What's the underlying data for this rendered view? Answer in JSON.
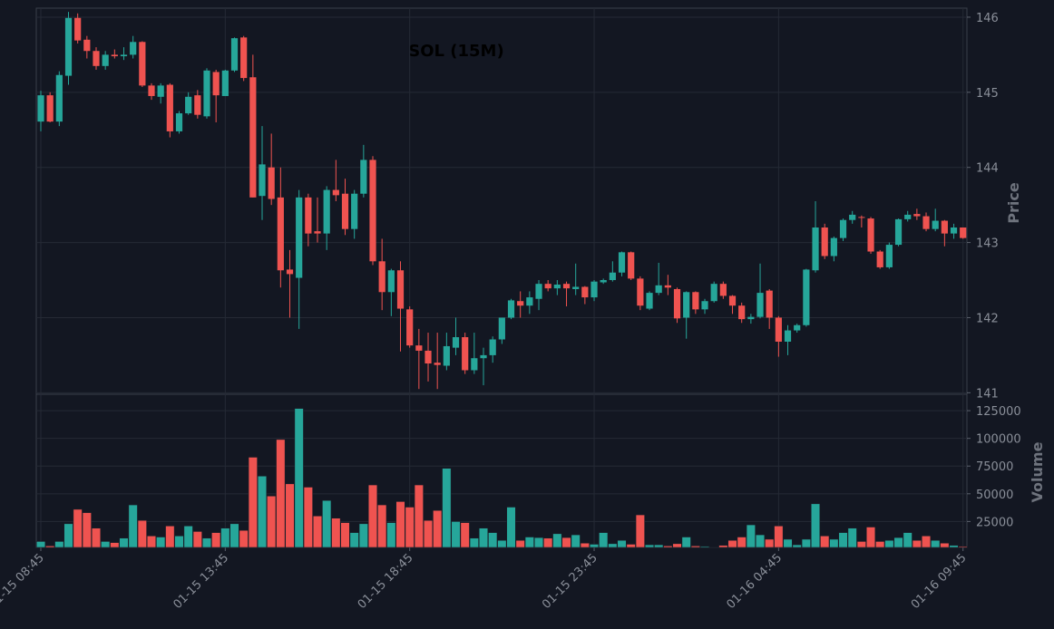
{
  "chart_data": {
    "type": "candlestick",
    "title": "SOL (15M)",
    "ylabel": "Price",
    "up_color": "#26a69a",
    "down_color": "#ef5350",
    "grid": true,
    "x": [
      "01-15 08:45",
      "01-15 09:00",
      "01-15 09:15",
      "01-15 09:30",
      "01-15 09:45",
      "01-15 10:00",
      "01-15 10:15",
      "01-15 10:30",
      "01-15 10:45",
      "01-15 11:00",
      "01-15 11:15",
      "01-15 11:30",
      "01-15 11:45",
      "01-15 12:00",
      "01-15 12:15",
      "01-15 12:30",
      "01-15 12:45",
      "01-15 13:00",
      "01-15 13:15",
      "01-15 13:30",
      "01-15 13:45",
      "01-15 14:00",
      "01-15 14:15",
      "01-15 14:30",
      "01-15 14:45",
      "01-15 15:00",
      "01-15 15:15",
      "01-15 15:30",
      "01-15 15:45",
      "01-15 16:00",
      "01-15 16:15",
      "01-15 16:30",
      "01-15 16:45",
      "01-15 17:00",
      "01-15 17:15",
      "01-15 17:30",
      "01-15 17:45",
      "01-15 18:00",
      "01-15 18:15",
      "01-15 18:30",
      "01-15 18:45",
      "01-15 19:00",
      "01-15 19:15",
      "01-15 19:30",
      "01-15 19:45",
      "01-15 20:00",
      "01-15 20:15",
      "01-15 20:30",
      "01-15 20:45",
      "01-15 21:00",
      "01-15 21:15",
      "01-15 21:30",
      "01-15 21:45",
      "01-15 22:00",
      "01-15 22:15",
      "01-15 22:30",
      "01-15 22:45",
      "01-15 23:00",
      "01-15 23:15",
      "01-15 23:30",
      "01-15 23:45",
      "01-16 00:00",
      "01-16 00:15",
      "01-16 00:30",
      "01-16 00:45",
      "01-16 01:00",
      "01-16 01:15",
      "01-16 01:30",
      "01-16 01:45",
      "01-16 02:00",
      "01-16 02:15",
      "01-16 02:30",
      "01-16 02:45",
      "01-16 03:00",
      "01-16 03:15",
      "01-16 03:30",
      "01-16 03:45",
      "01-16 04:00",
      "01-16 04:15",
      "01-16 04:30",
      "01-16 04:45",
      "01-16 05:00",
      "01-16 05:15",
      "01-16 05:30",
      "01-16 05:45",
      "01-16 06:00",
      "01-16 06:15",
      "01-16 06:30",
      "01-16 06:45",
      "01-16 07:00",
      "01-16 07:15",
      "01-16 07:30",
      "01-16 07:45",
      "01-16 08:00",
      "01-16 08:15",
      "01-16 08:30",
      "01-16 08:45",
      "01-16 09:00",
      "01-16 09:15",
      "01-16 09:30",
      "01-16 09:45"
    ],
    "open": [
      144.61,
      144.96,
      144.61,
      145.22,
      145.99,
      145.7,
      145.55,
      145.35,
      145.5,
      145.48,
      145.5,
      145.67,
      145.09,
      144.94,
      145.1,
      144.48,
      144.72,
      144.96,
      144.68,
      145.27,
      144.95,
      145.29,
      145.73,
      145.2,
      143.62,
      144.0,
      143.6,
      142.64,
      142.53,
      143.6,
      143.15,
      143.12,
      143.7,
      143.65,
      143.18,
      143.65,
      144.1,
      142.75,
      142.34,
      142.63,
      142.11,
      141.63,
      141.56,
      141.4,
      141.36,
      141.6,
      141.74,
      141.3,
      141.46,
      141.5,
      141.71,
      142.0,
      142.22,
      142.16,
      142.25,
      142.45,
      142.39,
      142.45,
      142.38,
      142.41,
      142.27,
      142.47,
      142.5,
      142.6,
      142.87,
      142.52,
      142.12,
      142.33,
      142.43,
      142.38,
      142.0,
      142.34,
      142.11,
      142.22,
      142.45,
      142.29,
      142.16,
      141.98,
      142.01,
      142.36,
      142.0,
      141.68,
      141.83,
      141.9,
      142.63,
      143.2,
      142.82,
      143.06,
      143.3,
      143.34,
      143.32,
      142.88,
      142.67,
      142.97,
      143.31,
      143.38,
      143.35,
      143.18,
      143.29,
      143.12,
      143.2
    ],
    "high": [
      145.02,
      145.0,
      145.28,
      146.07,
      146.05,
      145.75,
      145.6,
      145.55,
      145.57,
      145.6,
      145.75,
      145.68,
      145.12,
      145.12,
      145.12,
      144.75,
      145.0,
      145.03,
      145.32,
      145.3,
      145.3,
      145.73,
      145.75,
      145.5,
      144.55,
      144.45,
      144.0,
      142.9,
      143.7,
      143.65,
      143.6,
      143.75,
      144.1,
      143.85,
      143.7,
      144.3,
      144.15,
      143.05,
      142.65,
      142.75,
      142.15,
      141.85,
      141.8,
      141.8,
      141.8,
      142.0,
      141.8,
      141.8,
      141.6,
      141.75,
      142.0,
      142.25,
      142.35,
      142.35,
      142.5,
      142.5,
      142.5,
      142.48,
      142.72,
      142.42,
      142.5,
      142.52,
      142.75,
      142.88,
      142.88,
      142.55,
      142.35,
      142.73,
      142.57,
      142.4,
      142.35,
      142.35,
      142.25,
      142.48,
      142.48,
      142.3,
      142.2,
      142.05,
      142.72,
      142.38,
      142.02,
      141.9,
      141.92,
      142.65,
      143.55,
      143.25,
      143.08,
      143.32,
      143.42,
      143.36,
      143.34,
      142.9,
      143.0,
      143.32,
      143.42,
      143.45,
      143.4,
      143.45,
      143.3,
      143.25,
      143.2
    ],
    "low": [
      144.48,
      144.6,
      144.55,
      145.1,
      145.65,
      145.45,
      145.3,
      145.3,
      145.45,
      145.43,
      145.45,
      145.07,
      144.9,
      144.85,
      144.4,
      144.45,
      144.7,
      144.65,
      144.65,
      144.6,
      144.95,
      145.27,
      145.15,
      143.6,
      143.3,
      143.5,
      142.4,
      142.0,
      141.85,
      142.95,
      143.0,
      142.9,
      143.55,
      143.1,
      143.05,
      143.6,
      142.7,
      142.1,
      142.02,
      141.55,
      141.6,
      141.05,
      141.15,
      141.05,
      141.3,
      141.5,
      141.25,
      141.25,
      141.1,
      141.4,
      141.65,
      141.98,
      142.0,
      142.05,
      142.1,
      142.35,
      142.3,
      142.15,
      142.3,
      142.18,
      142.22,
      142.45,
      142.48,
      142.55,
      142.5,
      142.1,
      142.1,
      142.3,
      142.3,
      141.93,
      141.72,
      142.05,
      142.05,
      142.2,
      142.25,
      142.05,
      141.93,
      141.92,
      141.99,
      141.85,
      141.48,
      141.5,
      141.8,
      141.88,
      142.6,
      142.78,
      142.75,
      143.02,
      143.25,
      143.2,
      142.85,
      142.65,
      142.65,
      142.95,
      143.28,
      143.3,
      143.15,
      143.15,
      142.95,
      143.05,
      143.05
    ],
    "close": [
      144.96,
      144.61,
      145.23,
      145.99,
      145.69,
      145.55,
      145.35,
      145.5,
      145.48,
      145.5,
      145.67,
      145.09,
      144.95,
      145.09,
      144.48,
      144.72,
      144.94,
      144.7,
      145.29,
      144.96,
      145.29,
      145.72,
      145.19,
      143.6,
      144.04,
      143.58,
      142.63,
      142.58,
      143.6,
      143.12,
      143.12,
      143.7,
      143.63,
      143.18,
      143.65,
      144.1,
      142.75,
      142.34,
      142.63,
      142.12,
      141.63,
      141.56,
      141.39,
      141.37,
      141.62,
      141.74,
      141.3,
      141.46,
      141.5,
      141.71,
      142.0,
      142.23,
      142.16,
      142.27,
      142.45,
      142.39,
      142.44,
      142.39,
      142.41,
      142.27,
      142.48,
      142.5,
      142.6,
      142.87,
      142.52,
      142.16,
      142.33,
      142.43,
      142.4,
      141.99,
      142.34,
      142.11,
      142.22,
      142.45,
      142.29,
      142.16,
      141.98,
      142.01,
      142.33,
      142.0,
      141.68,
      141.83,
      141.9,
      142.64,
      143.2,
      142.82,
      143.06,
      143.3,
      143.37,
      143.33,
      142.88,
      142.67,
      142.97,
      143.31,
      143.37,
      143.35,
      143.18,
      143.29,
      143.12,
      143.2,
      143.06
    ],
    "ylim": [
      140.98,
      146.12
    ],
    "yticks": [
      141,
      142,
      143,
      144,
      145,
      146
    ],
    "xticks": [
      "01-15 08:45",
      "01-15 13:45",
      "01-15 18:45",
      "01-15 23:45",
      "01-16 04:45",
      "01-16 09:45"
    ],
    "volume": {
      "ylabel": "Volume",
      "values": [
        7000,
        3000,
        7000,
        23000,
        36000,
        33000,
        19000,
        7000,
        6000,
        10000,
        40000,
        26000,
        12000,
        11000,
        21000,
        12000,
        21000,
        16000,
        10000,
        15000,
        19000,
        23000,
        17000,
        83000,
        66000,
        48000,
        99000,
        59000,
        127000,
        56000,
        30000,
        44000,
        28000,
        24000,
        15000,
        23000,
        58000,
        40000,
        24000,
        43000,
        38000,
        58000,
        26000,
        35000,
        73000,
        25000,
        24000,
        10000,
        19000,
        15000,
        8000,
        38000,
        8000,
        11000,
        10500,
        10000,
        14000,
        10500,
        13000,
        5500,
        4500,
        15000,
        5000,
        8000,
        4500,
        31000,
        4000,
        4000,
        3000,
        5000,
        11000,
        3000,
        2500,
        2000,
        3500,
        8000,
        11000,
        22000,
        13000,
        9000,
        21000,
        9000,
        4000,
        9000,
        41000,
        12000,
        9000,
        15000,
        19000,
        7000,
        20000,
        7000,
        8000,
        10500,
        15000,
        8000,
        12000,
        8000,
        5500,
        3500,
        2500
      ],
      "ylim": [
        1600,
        139800
      ],
      "yticks": [
        25000,
        50000,
        75000,
        100000,
        125000
      ]
    }
  }
}
